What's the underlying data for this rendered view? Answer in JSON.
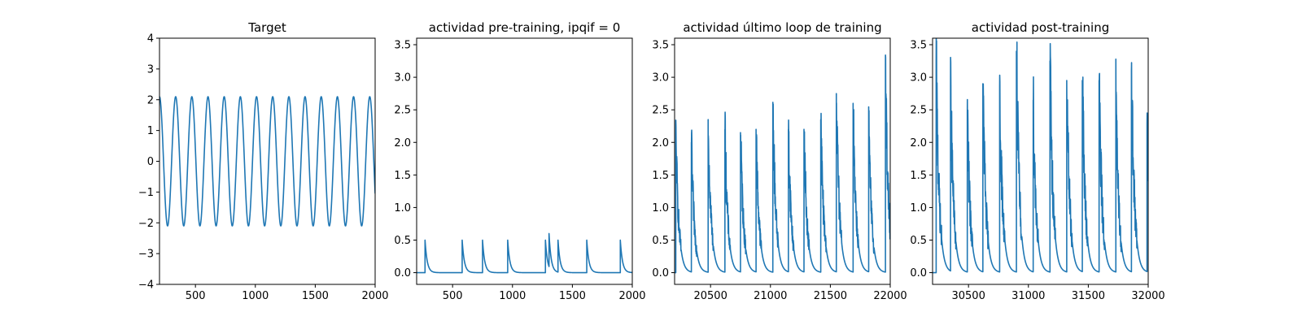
{
  "chart_data": [
    {
      "type": "line",
      "title": "Target",
      "xlabel": "",
      "ylabel": "",
      "xlim": [
        200,
        2000
      ],
      "ylim": [
        -4,
        4
      ],
      "xticks": [
        500,
        1000,
        1500,
        2000
      ],
      "yticks": [
        -4,
        -3,
        -2,
        -1,
        0,
        1,
        2,
        3,
        4
      ],
      "series": [
        {
          "kind": "sine",
          "amplitude": 2.1,
          "period": 135,
          "phase_deg": 90,
          "x_range": [
            200,
            2000
          ],
          "color": "#1f77b4"
        }
      ]
    },
    {
      "type": "line",
      "title": "actividad pre-training, ipqif = 0",
      "xlabel": "",
      "ylabel": "",
      "xlim": [
        200,
        2000
      ],
      "ylim": [
        -0.18,
        3.6
      ],
      "xticks": [
        500,
        1000,
        1500,
        2000
      ],
      "yticks": [
        0.0,
        0.5,
        1.0,
        1.5,
        2.0,
        2.5,
        3.0,
        3.5
      ],
      "series": [
        {
          "kind": "spikes",
          "x_range": [
            200,
            2000
          ],
          "decay": 18,
          "onset": 270,
          "spikes": [
            {
              "x": 270,
              "height": 0.5
            },
            {
              "x": 580,
              "height": 0.5
            },
            {
              "x": 750,
              "height": 0.5
            },
            {
              "x": 960,
              "height": 0.5
            },
            {
              "x": 1275,
              "height": 0.5
            },
            {
              "x": 1305,
              "height": 0.6
            },
            {
              "x": 1380,
              "height": 0.5
            },
            {
              "x": 1620,
              "height": 0.5
            },
            {
              "x": 1900,
              "height": 0.5
            }
          ],
          "color": "#1f77b4"
        }
      ]
    },
    {
      "type": "line",
      "title": "actividad último loop de training",
      "xlabel": "",
      "ylabel": "",
      "xlim": [
        20200,
        22000
      ],
      "ylim": [
        -0.18,
        3.6
      ],
      "xticks": [
        20500,
        21000,
        21500,
        22000
      ],
      "yticks": [
        0.0,
        0.5,
        1.0,
        1.5,
        2.0,
        2.5,
        3.0,
        3.5
      ],
      "series": [
        {
          "kind": "spikes",
          "x_range": [
            20200,
            22000
          ],
          "decay": 25,
          "onset": 20200,
          "jitter": 0.22,
          "spikes": [
            {
              "x": 20210,
              "height": 2.1
            },
            {
              "x": 20340,
              "height": 2.0
            },
            {
              "x": 20480,
              "height": 2.35
            },
            {
              "x": 20620,
              "height": 2.2
            },
            {
              "x": 20750,
              "height": 2.15
            },
            {
              "x": 20880,
              "height": 2.2
            },
            {
              "x": 21020,
              "height": 2.6
            },
            {
              "x": 21150,
              "height": 2.2
            },
            {
              "x": 21280,
              "height": 2.2
            },
            {
              "x": 21420,
              "height": 2.35
            },
            {
              "x": 21550,
              "height": 2.75
            },
            {
              "x": 21690,
              "height": 2.6
            },
            {
              "x": 21820,
              "height": 2.3
            },
            {
              "x": 21960,
              "height": 3.15
            }
          ],
          "color": "#1f77b4"
        }
      ]
    },
    {
      "type": "line",
      "title": "actividad post-training",
      "xlabel": "",
      "ylabel": "",
      "xlim": [
        30200,
        32000
      ],
      "ylim": [
        -0.18,
        3.6
      ],
      "xticks": [
        30500,
        31000,
        31500,
        32000
      ],
      "yticks": [
        0.0,
        0.5,
        1.0,
        1.5,
        2.0,
        2.5,
        3.0,
        3.5
      ],
      "series": [
        {
          "kind": "spikes",
          "x_range": [
            30200,
            32000
          ],
          "decay": 25,
          "onset": 30200,
          "jitter": 0.25,
          "spikes": [
            {
              "x": 30230,
              "height": 3.25
            },
            {
              "x": 30350,
              "height": 2.9
            },
            {
              "x": 30490,
              "height": 2.45
            },
            {
              "x": 30620,
              "height": 2.9
            },
            {
              "x": 30760,
              "height": 2.85
            },
            {
              "x": 30900,
              "height": 3.4
            },
            {
              "x": 31040,
              "height": 2.65
            },
            {
              "x": 31180,
              "height": 3.25
            },
            {
              "x": 31320,
              "height": 2.95
            },
            {
              "x": 31450,
              "height": 2.95
            },
            {
              "x": 31590,
              "height": 2.95
            },
            {
              "x": 31730,
              "height": 2.75
            },
            {
              "x": 31860,
              "height": 3.1
            },
            {
              "x": 31990,
              "height": 2.3
            }
          ],
          "color": "#1f77b4"
        }
      ]
    }
  ]
}
